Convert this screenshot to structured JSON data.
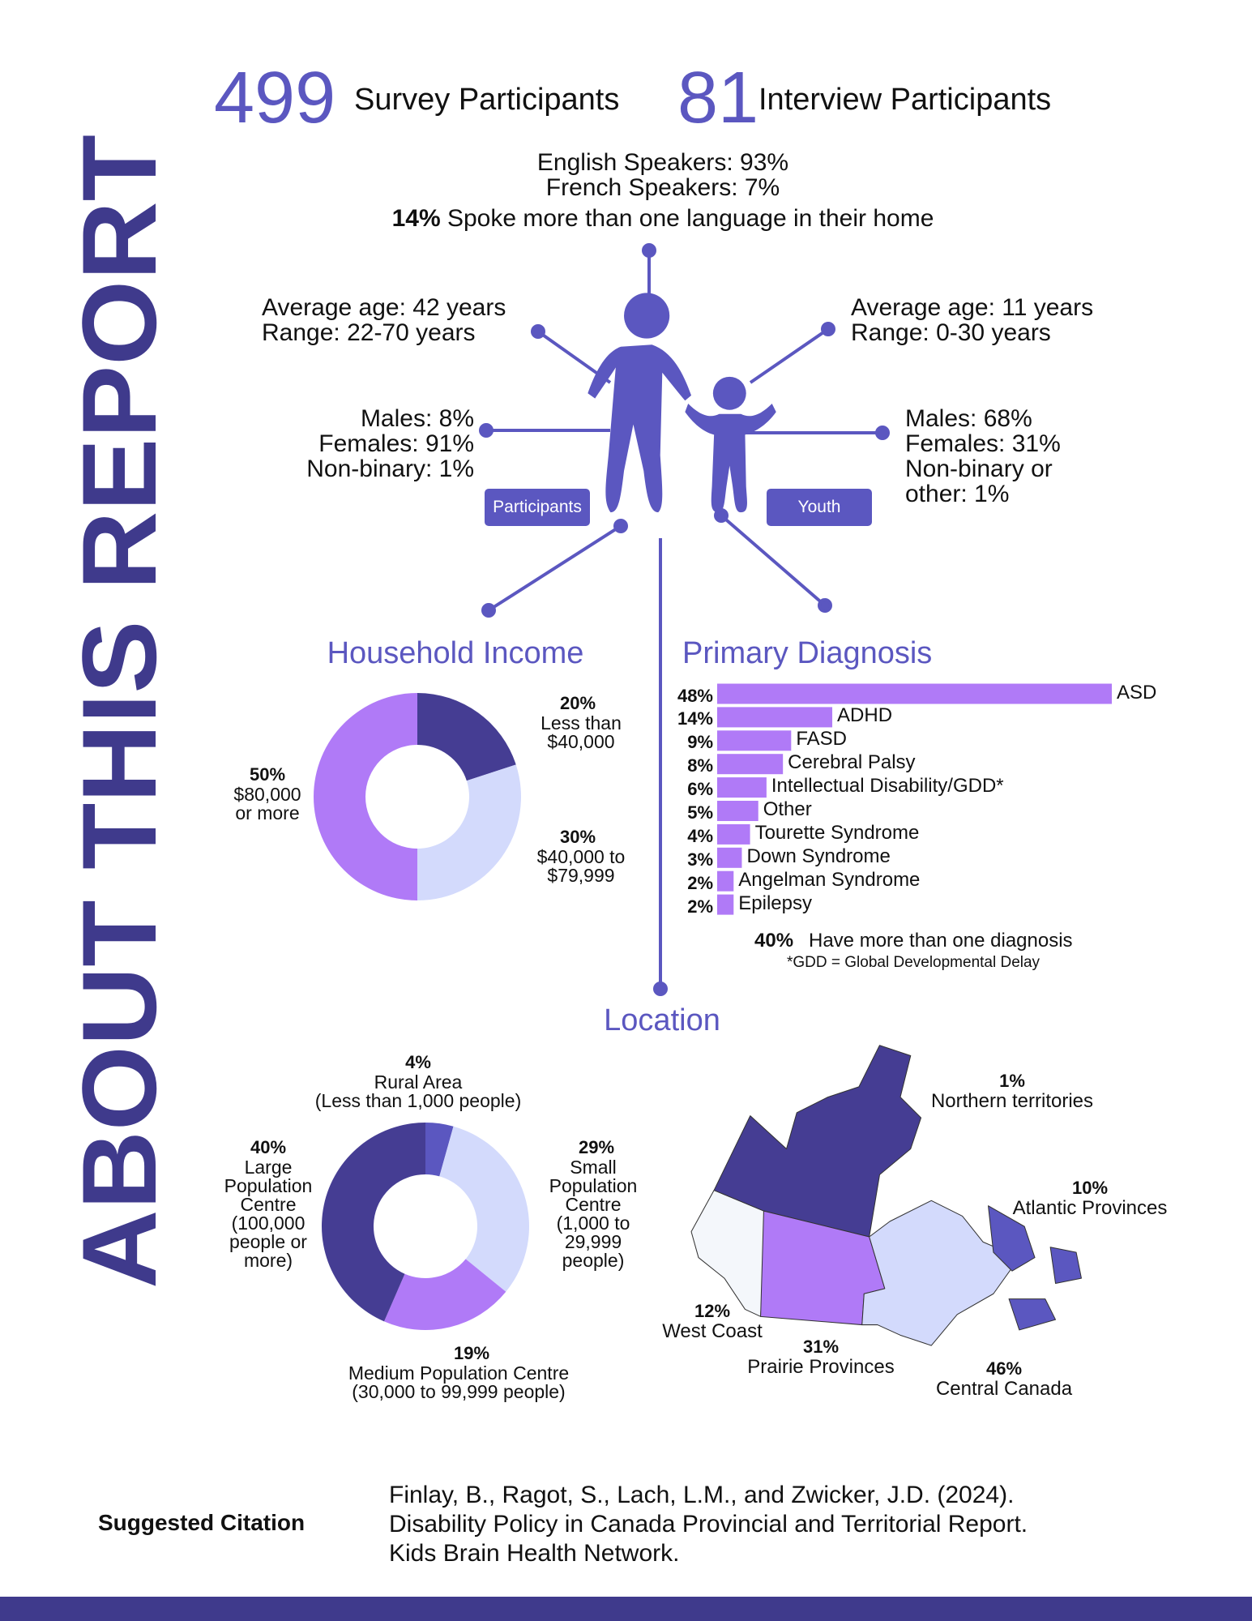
{
  "title": "ABOUT THIS REPORT",
  "headline": {
    "survey_count": 499,
    "survey_label": "Survey Participants",
    "interview_count": 81,
    "interview_label": "Interview Participants"
  },
  "language": {
    "english": "English Speakers: 93%",
    "french": "French Speakers: 7%",
    "multi_pct": "14%",
    "multi_text": "Spoke more than one language in their home"
  },
  "participants": {
    "label": "Participants",
    "age": "Average age: 42 years\nRange: 22-70 years",
    "gender": "Males: 8%\nFemales: 91%\nNon-binary: 1%"
  },
  "youth": {
    "label": "Youth",
    "age": "Average age: 11 years\nRange: 0-30 years",
    "gender": "Males: 68%\nFemales: 31%\nNon-binary or\nother: 1%"
  },
  "chart_data": [
    {
      "type": "donut",
      "title": "Household Income",
      "categories": [
        "Less than\n$40,000",
        "$40,000 to\n$79,999",
        "$80,000\nor more"
      ],
      "values": [
        20,
        30,
        50
      ],
      "value_labels": [
        "20%",
        "30%",
        "50%"
      ],
      "colors": [
        "#453d93",
        "#d3dafc",
        "#b07af7"
      ]
    },
    {
      "type": "bar",
      "title": "Primary Diagnosis",
      "categories": [
        "ASD",
        "ADHD",
        "FASD",
        "Cerebral Palsy",
        "Intellectual Disability/GDD*",
        "Other",
        "Tourette Syndrome",
        "Down Syndrome",
        "Angelman Syndrome",
        "Epilepsy"
      ],
      "values": [
        48,
        14,
        9,
        8,
        6,
        5,
        4,
        3,
        2,
        2
      ],
      "value_labels": [
        "48%",
        "14%",
        "9%",
        "8%",
        "6%",
        "5%",
        "4%",
        "3%",
        "2%",
        "2%"
      ],
      "color": "#b07af7",
      "annotations": [
        "40%",
        "Have more than one diagnosis",
        "*GDD = Global Developmental Delay"
      ]
    },
    {
      "type": "donut",
      "title": "Location",
      "categories": [
        "Rural Area\n(Less than 1,000 people)",
        "Small\nPopulation\nCentre\n(1,000 to\n29,999\npeople)",
        "Medium Population Centre\n(30,000 to 99,999 people)",
        "Large\nPopulation\nCentre\n(100,000\npeople or\nmore)"
      ],
      "values": [
        4,
        29,
        19,
        40
      ],
      "value_labels": [
        "4%",
        "29%",
        "19%",
        "40%"
      ],
      "colors": [
        "#5b57c0",
        "#d3dafc",
        "#b07af7",
        "#453d93"
      ]
    }
  ],
  "map": {
    "regions": [
      {
        "value_label": "1%",
        "name": "Northern territories"
      },
      {
        "value_label": "10%",
        "name": "Atlantic Provinces"
      },
      {
        "value_label": "12%",
        "name": "West Coast"
      },
      {
        "value_label": "31%",
        "name": "Prairie Provinces"
      },
      {
        "value_label": "46%",
        "name": "Central Canada"
      }
    ]
  },
  "citation": {
    "label": "Suggested Citation",
    "lines": [
      "Finlay, B., Ragot, S., Lach, L.M., and Zwicker, J.D. (2024).",
      "Disability Policy in Canada Provincial and Territorial Report.",
      "Kids Brain Health Network."
    ]
  }
}
